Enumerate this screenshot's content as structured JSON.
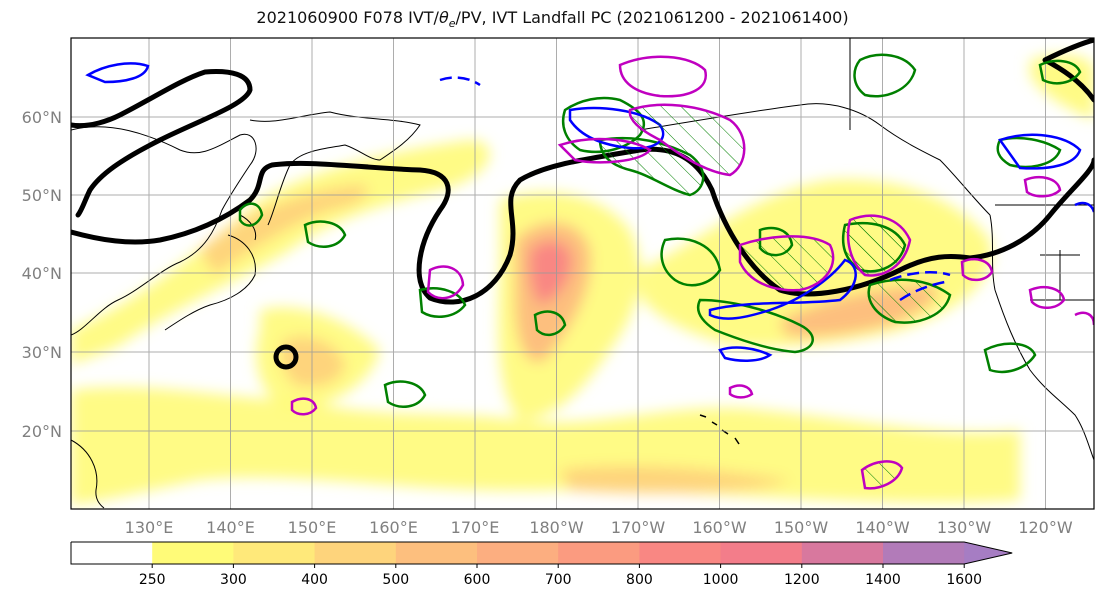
{
  "title": {
    "prefix": "2021060900 F078 IVT/",
    "theta": "θ",
    "theta_sub": "e",
    "suffix": "/PV, IVT Landfall PC (2021061200 - 2021061400)"
  },
  "lat_labels": [
    "60°N",
    "50°N",
    "40°N",
    "30°N",
    "20°N"
  ],
  "lon_labels": [
    "130°E",
    "140°E",
    "150°E",
    "160°E",
    "170°E",
    "180°W",
    "170°W",
    "160°W",
    "150°W",
    "140°W",
    "130°W",
    "120°W"
  ],
  "colorbar": {
    "ticks": [
      "250",
      "300",
      "400",
      "500",
      "600",
      "700",
      "800",
      "1000",
      "1200",
      "1400",
      "1600"
    ],
    "colors": [
      "#ffffff",
      "#fffb78",
      "#ffe97a",
      "#fed47c",
      "#fdbf7e",
      "#fcae80",
      "#fb9b80",
      "#f98783",
      "#f37d8a",
      "#d8789e",
      "#b27bb9",
      "#a67dc3"
    ]
  },
  "contour_colors": {
    "pv": "#000000",
    "theta_pos": "#008000",
    "theta_neg": "#0000ff",
    "ivt_pc": "#c000c0"
  }
}
